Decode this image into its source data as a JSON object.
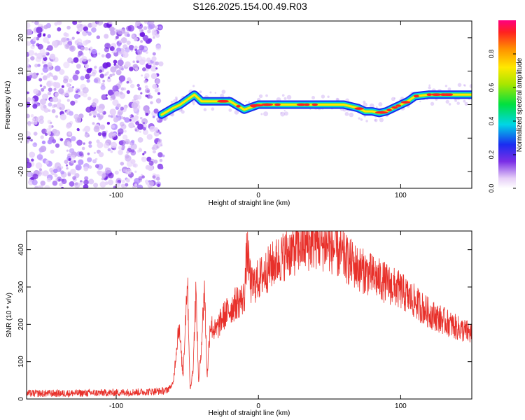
{
  "title": "S126.2025.154.00.49.R03",
  "colors": {
    "spectrum_scatter": "#7a2ee6",
    "snr_line": "#e8302a",
    "axis": "#000000"
  },
  "chart_data": [
    {
      "type": "heatmap",
      "name": "spectrogram",
      "xlabel": "Height of straight line (km)",
      "ylabel": "Frequency (Hz)",
      "xlim": [
        -163,
        150
      ],
      "ylim": [
        -25,
        25
      ],
      "x_ticks": [
        -100,
        0,
        100
      ],
      "y_ticks": [
        -20,
        -10,
        0,
        10,
        20
      ],
      "noise_region_x": [
        -163,
        -68
      ],
      "ridge": {
        "x": [
          -68,
          -60,
          -55,
          -45,
          -40,
          -30,
          -20,
          -10,
          0,
          10,
          20,
          30,
          40,
          50,
          60,
          70,
          75,
          80,
          85,
          90,
          95,
          100,
          105,
          110,
          120,
          130,
          140,
          150
        ],
        "freq_hz": [
          -3,
          -1,
          0,
          3,
          1,
          1,
          1,
          -1.5,
          0,
          0,
          0,
          0,
          0,
          0,
          0,
          -1,
          -2,
          -2,
          -2.5,
          -2,
          -1,
          0,
          1,
          2.5,
          3,
          3,
          3,
          3
        ]
      },
      "colorbar": {
        "label": "Normalized spectral amplitude",
        "ticks": [
          0.0,
          0.2,
          0.4,
          0.6,
          0.8
        ],
        "range": [
          0,
          1
        ],
        "colormap": "rainbow"
      },
      "grid": false
    },
    {
      "type": "line",
      "name": "snr",
      "xlabel": "Height of straight line (km)",
      "ylabel": "SNR (10 * v/v)",
      "xlim": [
        -163,
        150
      ],
      "ylim": [
        0,
        450
      ],
      "x_ticks": [
        -100,
        0,
        100
      ],
      "y_ticks": [
        0,
        100,
        200,
        300,
        400
      ],
      "series": [
        {
          "x": [
            -163,
            -140,
            -120,
            -100,
            -80,
            -65,
            -60,
            -56,
            -53,
            -50,
            -48,
            -46,
            -44,
            -42,
            -40,
            -38,
            -36,
            -34,
            -30,
            -25,
            -20,
            -15,
            -10,
            -8,
            -5,
            0,
            10,
            20,
            30,
            40,
            50,
            60,
            70,
            80,
            90,
            100,
            110,
            120,
            130,
            140,
            150
          ],
          "y": [
            15,
            15,
            16,
            17,
            19,
            22,
            40,
            200,
            60,
            330,
            20,
            80,
            290,
            40,
            150,
            300,
            60,
            200,
            180,
            220,
            240,
            260,
            270,
            400,
            300,
            320,
            360,
            390,
            410,
            420,
            410,
            380,
            350,
            330,
            310,
            290,
            260,
            230,
            210,
            190,
            175
          ]
        }
      ],
      "grid": false
    }
  ]
}
